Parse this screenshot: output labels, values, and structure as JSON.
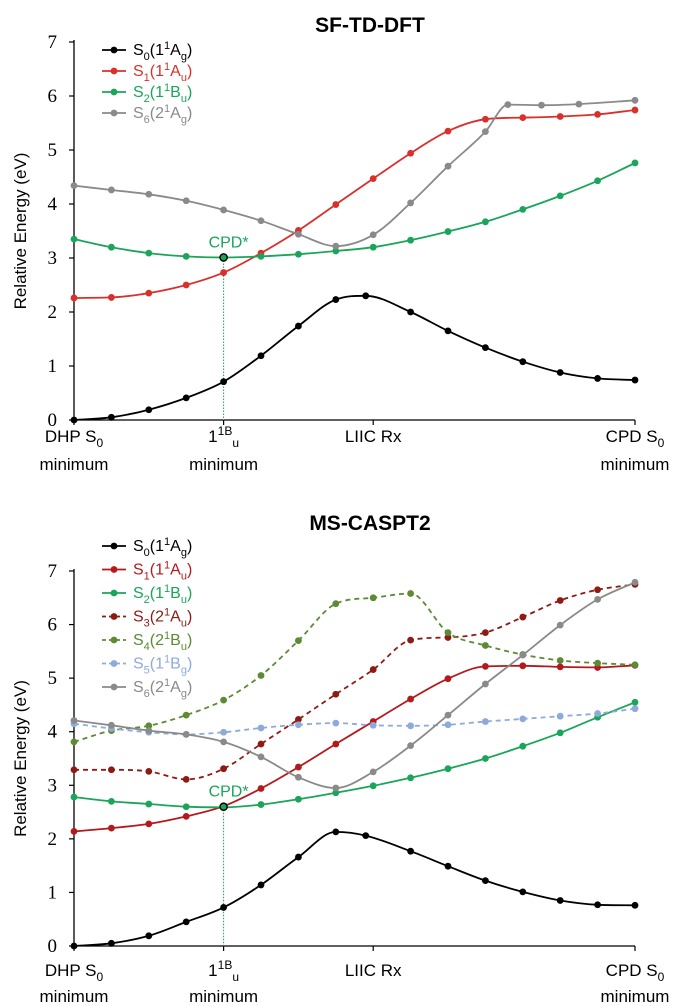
{
  "chart_data": [
    {
      "type": "line",
      "title": "SF-TD-DFT",
      "ylabel": "Relative Energy (eV)",
      "ylim": [
        0,
        7
      ],
      "yticks": [
        "0",
        "1",
        "2",
        "3",
        "4",
        "5",
        "6",
        "7"
      ],
      "x_ticks": [
        {
          "x": 0,
          "lines": [
            "DHP S|0",
            "minimum"
          ]
        },
        {
          "x": 4,
          "lines": [
            "1^1B_u",
            "minimum"
          ]
        },
        {
          "x": 8,
          "lines": [
            "LIIC Rx"
          ]
        },
        {
          "x": 15,
          "lines": [
            "CPD S|0",
            "minimum"
          ]
        }
      ],
      "xlim": [
        0,
        15
      ],
      "grid": false,
      "legend_position": "top-left",
      "annotation": {
        "text": "CPD*",
        "color": "#1aa55a",
        "x": 4,
        "y": 3.01
      },
      "series": [
        {
          "name": "S0(1^1A_g)",
          "legend_parts": [
            [
              "S",
              ""
            ],
            [
              "0",
              "sub"
            ],
            [
              "(1",
              ""
            ],
            [
              "1",
              "sup"
            ],
            [
              "A",
              ""
            ],
            [
              "g",
              "sub"
            ],
            [
              ")",
              ""
            ]
          ],
          "color": "#000000",
          "dashed": false,
          "x": [
            0,
            1,
            2,
            3,
            4,
            5,
            6,
            7,
            7.8,
            9,
            10,
            11,
            12,
            13,
            14,
            15
          ],
          "values": [
            0.0,
            0.05,
            0.19,
            0.41,
            0.71,
            1.19,
            1.74,
            2.23,
            2.3,
            2.0,
            1.65,
            1.34,
            1.08,
            0.88,
            0.77,
            0.74
          ]
        },
        {
          "name": "S1(1^1A_u)",
          "legend_parts": [
            [
              "S",
              ""
            ],
            [
              "1",
              "sub"
            ],
            [
              "(1",
              ""
            ],
            [
              "1",
              "sup"
            ],
            [
              "A",
              ""
            ],
            [
              "u",
              "sub"
            ],
            [
              ")",
              ""
            ]
          ],
          "color": "#d9302c",
          "dashed": false,
          "x": [
            0,
            1,
            2,
            3,
            4,
            5,
            6,
            7,
            8,
            9,
            10,
            11,
            12,
            13,
            14,
            15
          ],
          "values": [
            2.26,
            2.27,
            2.35,
            2.5,
            2.73,
            3.09,
            3.51,
            3.99,
            4.47,
            4.94,
            5.35,
            5.57,
            5.6,
            5.62,
            5.66,
            5.74
          ]
        },
        {
          "name": "S2(1^1B_u)",
          "legend_parts": [
            [
              "S",
              ""
            ],
            [
              "2",
              "sub"
            ],
            [
              "(1",
              ""
            ],
            [
              "1",
              "sup"
            ],
            [
              "B",
              ""
            ],
            [
              "u",
              "sub"
            ],
            [
              ")",
              ""
            ]
          ],
          "color": "#1aa55a",
          "dashed": false,
          "x": [
            0,
            1,
            2,
            3,
            4,
            5,
            6,
            7,
            8,
            9,
            10,
            11,
            12,
            13,
            14,
            15
          ],
          "values": [
            3.35,
            3.2,
            3.09,
            3.03,
            3.01,
            3.03,
            3.07,
            3.13,
            3.2,
            3.33,
            3.49,
            3.67,
            3.9,
            4.15,
            4.43,
            4.76
          ]
        },
        {
          "name": "S6(2^1A_g)",
          "legend_parts": [
            [
              "S",
              ""
            ],
            [
              "6",
              "sub"
            ],
            [
              "(2",
              ""
            ],
            [
              "1",
              "sup"
            ],
            [
              "A",
              ""
            ],
            [
              "g",
              "sub"
            ],
            [
              ")",
              ""
            ]
          ],
          "color": "#8a8a8a",
          "dashed": false,
          "x": [
            0,
            1,
            2,
            3,
            4,
            5,
            6,
            7,
            8,
            9,
            10,
            11,
            11.6,
            12.5,
            13.5,
            15
          ],
          "values": [
            4.34,
            4.26,
            4.18,
            4.06,
            3.89,
            3.69,
            3.44,
            3.22,
            3.43,
            4.02,
            4.7,
            5.34,
            5.84,
            5.83,
            5.85,
            5.92
          ]
        }
      ]
    },
    {
      "type": "line",
      "title": "MS-CASPT2",
      "ylabel": "Relative Energy (eV)",
      "ylim": [
        0,
        7
      ],
      "yticks": [
        "0",
        "1",
        "2",
        "3",
        "4",
        "5",
        "6",
        "7"
      ],
      "x_ticks": [
        {
          "x": 0,
          "lines": [
            "DHP S|0",
            "minimum"
          ]
        },
        {
          "x": 4,
          "lines": [
            "1^1B_u",
            "minimum"
          ]
        },
        {
          "x": 8,
          "lines": [
            "LIIC Rx"
          ]
        },
        {
          "x": 15,
          "lines": [
            "CPD S|0",
            "minimum"
          ]
        }
      ],
      "xlim": [
        0,
        15
      ],
      "grid": false,
      "legend_position": "top-left",
      "annotation": {
        "text": "CPD*",
        "color": "#1aa55a",
        "x": 4,
        "y": 2.6
      },
      "series": [
        {
          "name": "S0(1^1A_g)",
          "legend_parts": [
            [
              "S",
              ""
            ],
            [
              "0",
              "sub"
            ],
            [
              "(1",
              ""
            ],
            [
              "1",
              "sup"
            ],
            [
              "A",
              ""
            ],
            [
              "g",
              "sub"
            ],
            [
              ")",
              ""
            ]
          ],
          "color": "#000000",
          "dashed": false,
          "x": [
            0,
            1,
            2,
            3,
            4,
            5,
            6,
            7,
            7.8,
            9,
            10,
            11,
            12,
            13,
            14,
            15
          ],
          "values": [
            0.0,
            0.05,
            0.19,
            0.45,
            0.72,
            1.14,
            1.66,
            2.13,
            2.06,
            1.77,
            1.49,
            1.22,
            1.01,
            0.85,
            0.77,
            0.76
          ]
        },
        {
          "name": "S1(1^1A_u)",
          "legend_parts": [
            [
              "S",
              ""
            ],
            [
              "1",
              "sub"
            ],
            [
              "(1",
              ""
            ],
            [
              "1",
              "sup"
            ],
            [
              "A",
              ""
            ],
            [
              "u",
              "sub"
            ],
            [
              ")",
              ""
            ]
          ],
          "color": "#b5191c",
          "dashed": false,
          "x": [
            0,
            1,
            2,
            3,
            4,
            5,
            6,
            7,
            8,
            9,
            10,
            11,
            12,
            13,
            14,
            15
          ],
          "values": [
            2.14,
            2.2,
            2.28,
            2.42,
            2.61,
            2.94,
            3.34,
            3.77,
            4.19,
            4.61,
            4.99,
            5.22,
            5.23,
            5.21,
            5.2,
            5.24
          ]
        },
        {
          "name": "S2(1^1B_u)",
          "legend_parts": [
            [
              "S",
              ""
            ],
            [
              "2",
              "sub"
            ],
            [
              "(1",
              ""
            ],
            [
              "1",
              "sup"
            ],
            [
              "B",
              ""
            ],
            [
              "u",
              "sub"
            ],
            [
              ")",
              ""
            ]
          ],
          "color": "#1aa55a",
          "dashed": false,
          "x": [
            0,
            1,
            2,
            3,
            4,
            5,
            6,
            7,
            8,
            9,
            10,
            11,
            12,
            13,
            14,
            15
          ],
          "values": [
            2.78,
            2.7,
            2.65,
            2.6,
            2.59,
            2.64,
            2.74,
            2.86,
            2.99,
            3.14,
            3.31,
            3.5,
            3.73,
            3.98,
            4.27,
            4.55
          ]
        },
        {
          "name": "S3(2^1A_u)",
          "legend_parts": [
            [
              "S",
              ""
            ],
            [
              "3",
              "sub"
            ],
            [
              "(2",
              ""
            ],
            [
              "1",
              "sup"
            ],
            [
              "A",
              ""
            ],
            [
              "u",
              "sub"
            ],
            [
              ")",
              ""
            ]
          ],
          "color": "#8e1a14",
          "dashed": true,
          "x": [
            0,
            1,
            2,
            3,
            4,
            5,
            6,
            7,
            8,
            9,
            10,
            11,
            12,
            13,
            14,
            15
          ],
          "values": [
            3.29,
            3.29,
            3.26,
            3.11,
            3.31,
            3.77,
            4.23,
            4.7,
            5.16,
            5.71,
            5.76,
            5.85,
            6.14,
            6.45,
            6.65,
            6.75
          ]
        },
        {
          "name": "S4(2^1B_u)",
          "legend_parts": [
            [
              "S",
              ""
            ],
            [
              "4",
              "sub"
            ],
            [
              "(2",
              ""
            ],
            [
              "1",
              "sup"
            ],
            [
              "B",
              ""
            ],
            [
              "u",
              "sub"
            ],
            [
              ")",
              ""
            ]
          ],
          "color": "#5c8a35",
          "dashed": true,
          "x": [
            0,
            1,
            2,
            3,
            4,
            5,
            6,
            7,
            8,
            9,
            10,
            11,
            12,
            13,
            14,
            15
          ],
          "values": [
            3.81,
            4.02,
            4.11,
            4.31,
            4.59,
            5.05,
            5.7,
            6.39,
            6.5,
            6.58,
            5.85,
            5.61,
            5.44,
            5.33,
            5.28,
            5.25
          ]
        },
        {
          "name": "S5(1^1B_g)",
          "legend_parts": [
            [
              "S",
              ""
            ],
            [
              "5",
              "sub"
            ],
            [
              "(1",
              ""
            ],
            [
              "1",
              "sup"
            ],
            [
              "B",
              ""
            ],
            [
              "g",
              "sub"
            ],
            [
              ")",
              ""
            ]
          ],
          "color": "#8eaadb",
          "dashed": true,
          "x": [
            0,
            1,
            2,
            3,
            4,
            5,
            6,
            7,
            8,
            9,
            10,
            11,
            12,
            13,
            14,
            15
          ],
          "values": [
            4.15,
            4.06,
            3.99,
            3.95,
            3.99,
            4.07,
            4.13,
            4.16,
            4.12,
            4.11,
            4.13,
            4.19,
            4.24,
            4.29,
            4.34,
            4.43
          ]
        },
        {
          "name": "S6(2^1A_g)",
          "legend_parts": [
            [
              "S",
              ""
            ],
            [
              "6",
              "sub"
            ],
            [
              "(2",
              ""
            ],
            [
              "1",
              "sup"
            ],
            [
              "A",
              ""
            ],
            [
              "g",
              "sub"
            ],
            [
              ")",
              ""
            ]
          ],
          "color": "#8a8a8a",
          "dashed": false,
          "x": [
            0,
            1,
            2,
            3,
            4,
            5,
            6,
            7,
            8,
            9,
            10,
            11,
            12,
            13,
            14,
            15
          ],
          "values": [
            4.21,
            4.12,
            4.02,
            3.95,
            3.81,
            3.53,
            3.15,
            2.95,
            3.25,
            3.74,
            4.31,
            4.89,
            5.43,
            5.99,
            6.47,
            6.79
          ]
        }
      ]
    }
  ]
}
